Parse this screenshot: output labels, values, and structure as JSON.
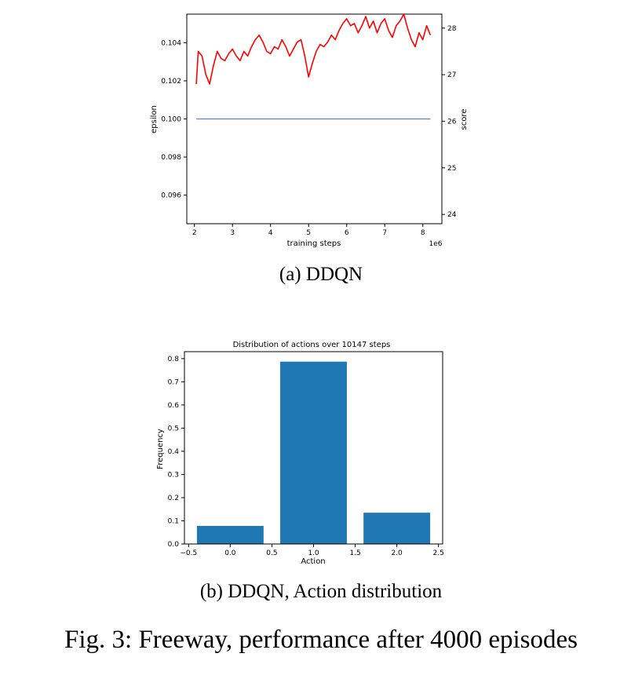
{
  "chart_data": [
    {
      "type": "line",
      "xlabel": "training steps",
      "x_offset_label": "1e6",
      "x_ticks": [
        2,
        3,
        4,
        5,
        6,
        7,
        8
      ],
      "xlim": [
        1.8,
        8.5
      ],
      "y_left": {
        "label": "epsilon",
        "color": "#4f86d4",
        "ylim": [
          0.0945,
          0.1055
        ],
        "ticks": [
          "0.096",
          "0.098",
          "0.100",
          "0.102",
          "0.104"
        ]
      },
      "y_right": {
        "label": "score",
        "color": "#ff0000",
        "ylim": [
          23.8,
          28.3
        ],
        "ticks": [
          "24",
          "25",
          "26",
          "27",
          "28"
        ]
      },
      "series": [
        {
          "name": "epsilon",
          "axis": "left",
          "color": "#4f86d4",
          "x": [
            2.05,
            8.2
          ],
          "y": [
            0.1,
            0.1
          ]
        },
        {
          "name": "score",
          "axis": "right",
          "color": "#ff0000",
          "x": [
            2.05,
            2.1,
            2.2,
            2.3,
            2.4,
            2.5,
            2.6,
            2.7,
            2.8,
            2.9,
            3.0,
            3.1,
            3.2,
            3.3,
            3.4,
            3.5,
            3.6,
            3.7,
            3.8,
            3.9,
            4.0,
            4.1,
            4.2,
            4.3,
            4.4,
            4.5,
            4.6,
            4.7,
            4.8,
            4.9,
            5.0,
            5.1,
            5.2,
            5.3,
            5.4,
            5.5,
            5.6,
            5.7,
            5.8,
            5.9,
            6.0,
            6.1,
            6.2,
            6.3,
            6.4,
            6.5,
            6.6,
            6.7,
            6.8,
            6.9,
            7.0,
            7.1,
            7.2,
            7.3,
            7.4,
            7.5,
            7.6,
            7.7,
            7.8,
            7.9,
            8.0,
            8.1,
            8.2
          ],
          "y": [
            26.8,
            27.5,
            27.4,
            27.0,
            26.8,
            27.2,
            27.5,
            27.35,
            27.3,
            27.45,
            27.55,
            27.4,
            27.3,
            27.5,
            27.4,
            27.6,
            27.75,
            27.85,
            27.7,
            27.5,
            27.45,
            27.6,
            27.55,
            27.75,
            27.6,
            27.4,
            27.55,
            27.7,
            27.75,
            27.4,
            26.95,
            27.25,
            27.5,
            27.65,
            27.6,
            27.7,
            27.85,
            27.75,
            27.95,
            28.1,
            28.2,
            28.05,
            28.1,
            27.9,
            28.05,
            28.25,
            28.0,
            28.15,
            27.9,
            28.1,
            28.2,
            27.95,
            27.8,
            28.05,
            28.15,
            28.3,
            28.0,
            27.75,
            27.6,
            27.9,
            27.75,
            28.05,
            27.85
          ]
        }
      ]
    },
    {
      "type": "bar",
      "title": "Distribution of actions over 10147 steps",
      "xlabel": "Action",
      "ylabel": "Frequency",
      "categories": [
        0.0,
        1.0,
        2.0
      ],
      "values": [
        0.078,
        0.787,
        0.135
      ],
      "color": "#1f77b4",
      "bar_width": 0.8,
      "xlim": [
        -0.55,
        2.55
      ],
      "ylim": [
        0,
        0.83
      ],
      "x_ticks": [
        "−0.5",
        "0.0",
        "0.5",
        "1.0",
        "1.5",
        "2.0",
        "2.5"
      ],
      "y_ticks": [
        "0.0",
        "0.1",
        "0.2",
        "0.3",
        "0.4",
        "0.5",
        "0.6",
        "0.7",
        "0.8"
      ]
    }
  ],
  "captions": {
    "a": "(a) DDQN",
    "b": "(b) DDQN, Action distribution",
    "figure": "Fig. 3: Freeway, performance after 4000 episodes"
  }
}
